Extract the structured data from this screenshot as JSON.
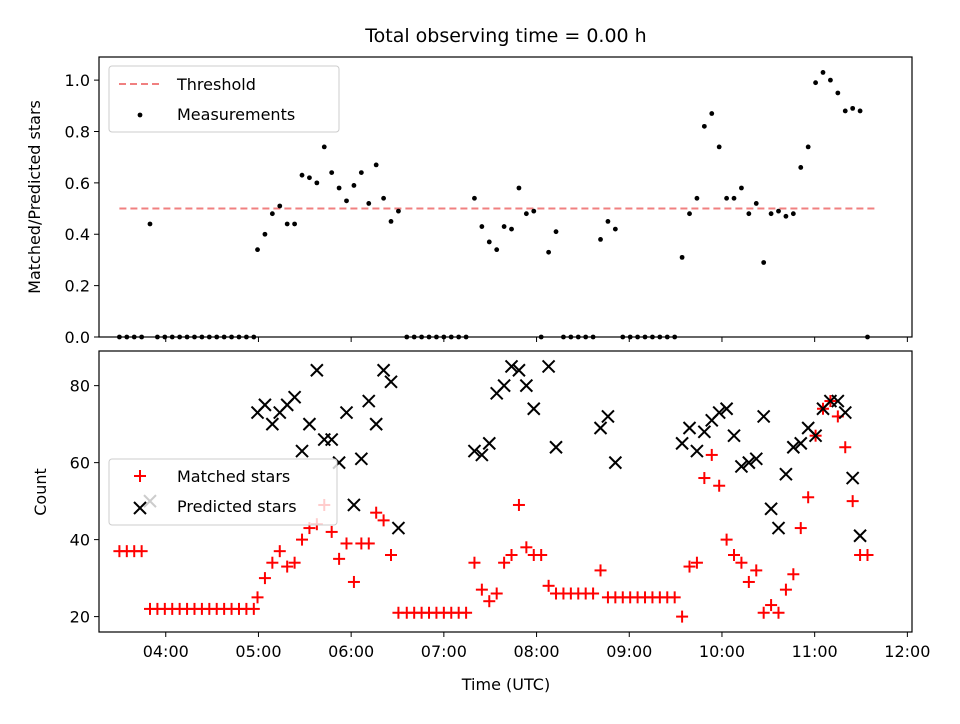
{
  "chart_data": [
    {
      "type": "scatter",
      "title": "Total observing time = 0.00 h",
      "xlabel": "",
      "ylabel": "Matched/Predicted stars",
      "x_unit": "hours UTC",
      "xlim": [
        3.28,
        12.05
      ],
      "ylim": [
        0,
        1.09
      ],
      "yticks": [
        "0.0",
        "0.2",
        "0.4",
        "0.6",
        "0.8",
        "1.0"
      ],
      "ytick_values": [
        0,
        0.2,
        0.4,
        0.6,
        0.8,
        1.0
      ],
      "xticks": [
        4,
        5,
        6,
        7,
        8,
        9,
        10,
        11,
        12
      ],
      "legend_position": "upper-left",
      "grid": false,
      "threshold": {
        "name": "Threshold",
        "value": 0.5,
        "x": [
          3.5,
          11.65
        ],
        "color": "#f08080"
      },
      "series": [
        {
          "name": "Measurements",
          "color": "#000000",
          "marker": "dot",
          "points": [
            [
              3.5,
              0
            ],
            [
              3.58,
              0
            ],
            [
              3.66,
              0
            ],
            [
              3.74,
              0
            ],
            [
              3.83,
              0.44
            ],
            [
              3.91,
              0
            ],
            [
              3.99,
              0
            ],
            [
              4.07,
              0
            ],
            [
              4.15,
              0
            ],
            [
              4.23,
              0
            ],
            [
              4.31,
              0
            ],
            [
              4.39,
              0
            ],
            [
              4.47,
              0
            ],
            [
              4.55,
              0
            ],
            [
              4.63,
              0
            ],
            [
              4.71,
              0
            ],
            [
              4.79,
              0
            ],
            [
              4.87,
              0
            ],
            [
              4.95,
              0
            ],
            [
              4.99,
              0.34
            ],
            [
              5.07,
              0.4
            ],
            [
              5.15,
              0.48
            ],
            [
              5.23,
              0.51
            ],
            [
              5.31,
              0.44
            ],
            [
              5.39,
              0.44
            ],
            [
              5.47,
              0.63
            ],
            [
              5.55,
              0.62
            ],
            [
              5.63,
              0.6
            ],
            [
              5.71,
              0.74
            ],
            [
              5.79,
              0.64
            ],
            [
              5.87,
              0.58
            ],
            [
              5.95,
              0.53
            ],
            [
              6.03,
              0.59
            ],
            [
              6.11,
              0.64
            ],
            [
              6.19,
              0.52
            ],
            [
              6.27,
              0.67
            ],
            [
              6.35,
              0.54
            ],
            [
              6.43,
              0.45
            ],
            [
              6.51,
              0.49
            ],
            [
              6.6,
              0
            ],
            [
              6.68,
              0
            ],
            [
              6.76,
              0
            ],
            [
              6.84,
              0
            ],
            [
              6.92,
              0
            ],
            [
              7.0,
              0
            ],
            [
              7.08,
              0
            ],
            [
              7.16,
              0
            ],
            [
              7.24,
              0
            ],
            [
              7.33,
              0.54
            ],
            [
              7.41,
              0.43
            ],
            [
              7.49,
              0.37
            ],
            [
              7.57,
              0.34
            ],
            [
              7.65,
              0.43
            ],
            [
              7.73,
              0.42
            ],
            [
              7.81,
              0.58
            ],
            [
              7.89,
              0.48
            ],
            [
              7.97,
              0.49
            ],
            [
              8.05,
              0
            ],
            [
              8.13,
              0.33
            ],
            [
              8.21,
              0.41
            ],
            [
              8.29,
              0
            ],
            [
              8.37,
              0
            ],
            [
              8.45,
              0
            ],
            [
              8.53,
              0
            ],
            [
              8.61,
              0
            ],
            [
              8.69,
              0.38
            ],
            [
              8.77,
              0.45
            ],
            [
              8.85,
              0.42
            ],
            [
              8.93,
              0
            ],
            [
              9.01,
              0
            ],
            [
              9.09,
              0
            ],
            [
              9.17,
              0
            ],
            [
              9.25,
              0
            ],
            [
              9.33,
              0
            ],
            [
              9.41,
              0
            ],
            [
              9.49,
              0
            ],
            [
              9.57,
              0.31
            ],
            [
              9.65,
              0.48
            ],
            [
              9.73,
              0.54
            ],
            [
              9.81,
              0.82
            ],
            [
              9.89,
              0.87
            ],
            [
              9.97,
              0.74
            ],
            [
              10.05,
              0.54
            ],
            [
              10.13,
              0.54
            ],
            [
              10.21,
              0.58
            ],
            [
              10.29,
              0.48
            ],
            [
              10.37,
              0.52
            ],
            [
              10.45,
              0.29
            ],
            [
              10.53,
              0.48
            ],
            [
              10.61,
              0.49
            ],
            [
              10.69,
              0.47
            ],
            [
              10.77,
              0.48
            ],
            [
              10.85,
              0.66
            ],
            [
              10.93,
              0.74
            ],
            [
              11.01,
              0.99
            ],
            [
              11.09,
              1.03
            ],
            [
              11.17,
              1.0
            ],
            [
              11.25,
              0.95
            ],
            [
              11.33,
              0.88
            ],
            [
              11.41,
              0.89
            ],
            [
              11.49,
              0.88
            ],
            [
              11.57,
              0
            ]
          ]
        }
      ]
    },
    {
      "type": "scatter",
      "title": "",
      "xlabel": "Time (UTC)",
      "ylabel": "Count",
      "x_unit": "hours UTC",
      "xlim": [
        3.28,
        12.05
      ],
      "ylim": [
        16,
        89
      ],
      "yticks": [
        "20",
        "40",
        "60",
        "80"
      ],
      "ytick_values": [
        20,
        40,
        60,
        80
      ],
      "xticks": [
        "04:00",
        "05:00",
        "06:00",
        "07:00",
        "08:00",
        "09:00",
        "10:00",
        "11:00",
        "12:00"
      ],
      "xtick_values": [
        4,
        5,
        6,
        7,
        8,
        9,
        10,
        11,
        12
      ],
      "legend_position": "center-left",
      "grid": false,
      "series": [
        {
          "name": "Matched stars",
          "color": "#ff0000",
          "marker": "plus",
          "points": [
            [
              3.5,
              37
            ],
            [
              3.58,
              37
            ],
            [
              3.66,
              37
            ],
            [
              3.74,
              37
            ],
            [
              3.83,
              22
            ],
            [
              3.91,
              22
            ],
            [
              3.99,
              22
            ],
            [
              4.07,
              22
            ],
            [
              4.15,
              22
            ],
            [
              4.23,
              22
            ],
            [
              4.31,
              22
            ],
            [
              4.39,
              22
            ],
            [
              4.47,
              22
            ],
            [
              4.55,
              22
            ],
            [
              4.63,
              22
            ],
            [
              4.71,
              22
            ],
            [
              4.79,
              22
            ],
            [
              4.87,
              22
            ],
            [
              4.95,
              22
            ],
            [
              4.99,
              25
            ],
            [
              5.07,
              30
            ],
            [
              5.15,
              34
            ],
            [
              5.23,
              37
            ],
            [
              5.31,
              33
            ],
            [
              5.39,
              34
            ],
            [
              5.47,
              40
            ],
            [
              5.55,
              43
            ],
            [
              5.63,
              44
            ],
            [
              5.71,
              49
            ],
            [
              5.79,
              42
            ],
            [
              5.87,
              35
            ],
            [
              5.95,
              39
            ],
            [
              6.03,
              29
            ],
            [
              6.11,
              39
            ],
            [
              6.19,
              39
            ],
            [
              6.27,
              47
            ],
            [
              6.35,
              45
            ],
            [
              6.43,
              36
            ],
            [
              6.51,
              21
            ],
            [
              6.6,
              21
            ],
            [
              6.68,
              21
            ],
            [
              6.76,
              21
            ],
            [
              6.84,
              21
            ],
            [
              6.92,
              21
            ],
            [
              7.0,
              21
            ],
            [
              7.08,
              21
            ],
            [
              7.16,
              21
            ],
            [
              7.24,
              21
            ],
            [
              7.33,
              34
            ],
            [
              7.41,
              27
            ],
            [
              7.49,
              24
            ],
            [
              7.57,
              26
            ],
            [
              7.65,
              34
            ],
            [
              7.73,
              36
            ],
            [
              7.81,
              49
            ],
            [
              7.89,
              38
            ],
            [
              7.97,
              36
            ],
            [
              8.05,
              36
            ],
            [
              8.13,
              28
            ],
            [
              8.21,
              26
            ],
            [
              8.29,
              26
            ],
            [
              8.37,
              26
            ],
            [
              8.45,
              26
            ],
            [
              8.53,
              26
            ],
            [
              8.61,
              26
            ],
            [
              8.69,
              32
            ],
            [
              8.77,
              25
            ],
            [
              8.85,
              25
            ],
            [
              8.93,
              25
            ],
            [
              9.01,
              25
            ],
            [
              9.09,
              25
            ],
            [
              9.17,
              25
            ],
            [
              9.25,
              25
            ],
            [
              9.33,
              25
            ],
            [
              9.41,
              25
            ],
            [
              9.49,
              25
            ],
            [
              9.57,
              20
            ],
            [
              9.65,
              33
            ],
            [
              9.73,
              34
            ],
            [
              9.81,
              56
            ],
            [
              9.89,
              62
            ],
            [
              9.97,
              54
            ],
            [
              10.05,
              40
            ],
            [
              10.13,
              36
            ],
            [
              10.21,
              34
            ],
            [
              10.29,
              29
            ],
            [
              10.37,
              32
            ],
            [
              10.45,
              21
            ],
            [
              10.53,
              23
            ],
            [
              10.61,
              21
            ],
            [
              10.69,
              27
            ],
            [
              10.77,
              31
            ],
            [
              10.85,
              43
            ],
            [
              10.93,
              51
            ],
            [
              11.01,
              67
            ],
            [
              11.09,
              74
            ],
            [
              11.17,
              76
            ],
            [
              11.25,
              72
            ],
            [
              11.33,
              64
            ],
            [
              11.41,
              50
            ],
            [
              11.49,
              36
            ],
            [
              11.57,
              36
            ]
          ]
        },
        {
          "name": "Predicted stars",
          "color": "#000000",
          "marker": "x",
          "points": [
            [
              3.83,
              50
            ],
            [
              4.99,
              73
            ],
            [
              5.07,
              75
            ],
            [
              5.15,
              70
            ],
            [
              5.23,
              73
            ],
            [
              5.31,
              75
            ],
            [
              5.39,
              77
            ],
            [
              5.47,
              63
            ],
            [
              5.55,
              70
            ],
            [
              5.63,
              84
            ],
            [
              5.71,
              66
            ],
            [
              5.79,
              66
            ],
            [
              5.87,
              60
            ],
            [
              5.95,
              73
            ],
            [
              6.03,
              49
            ],
            [
              6.11,
              61
            ],
            [
              6.19,
              76
            ],
            [
              6.27,
              70
            ],
            [
              6.35,
              84
            ],
            [
              6.43,
              81
            ],
            [
              6.51,
              43
            ],
            [
              7.33,
              63
            ],
            [
              7.41,
              62
            ],
            [
              7.49,
              65
            ],
            [
              7.57,
              78
            ],
            [
              7.65,
              80
            ],
            [
              7.73,
              85
            ],
            [
              7.81,
              84
            ],
            [
              7.89,
              80
            ],
            [
              7.97,
              74
            ],
            [
              8.13,
              85
            ],
            [
              8.21,
              64
            ],
            [
              8.69,
              69
            ],
            [
              8.77,
              72
            ],
            [
              8.85,
              60
            ],
            [
              9.57,
              65
            ],
            [
              9.65,
              69
            ],
            [
              9.73,
              63
            ],
            [
              9.81,
              68
            ],
            [
              9.89,
              71
            ],
            [
              9.97,
              73
            ],
            [
              10.05,
              74
            ],
            [
              10.13,
              67
            ],
            [
              10.21,
              59
            ],
            [
              10.29,
              60
            ],
            [
              10.37,
              61
            ],
            [
              10.45,
              72
            ],
            [
              10.53,
              48
            ],
            [
              10.61,
              43
            ],
            [
              10.69,
              57
            ],
            [
              10.77,
              64
            ],
            [
              10.85,
              65
            ],
            [
              10.93,
              69
            ],
            [
              11.01,
              67
            ],
            [
              11.09,
              74
            ],
            [
              11.17,
              76
            ],
            [
              11.25,
              76
            ],
            [
              11.33,
              73
            ],
            [
              11.41,
              56
            ],
            [
              11.49,
              41
            ]
          ]
        }
      ]
    }
  ]
}
